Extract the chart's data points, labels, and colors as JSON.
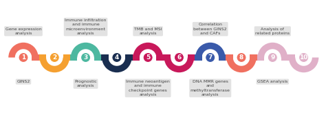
{
  "background_color": "#ffffff",
  "colors": [
    "#F07060",
    "#F5A030",
    "#4DB8A0",
    "#1A2E50",
    "#C8185A",
    "#C8185A",
    "#3A5AAA",
    "#F07060",
    "#E0B0C8",
    "#E0B0C8"
  ],
  "top_labels": [
    {
      "idx": 0,
      "text": "Gene expression\nanalysis"
    },
    {
      "idx": 2,
      "text": "Immune infiltration\nand immune\nmicroenvironment\nanalysis"
    },
    {
      "idx": 4,
      "text": "TMB and MSI\nanalysis"
    },
    {
      "idx": 6,
      "text": "Correlation\nbetween GINS2\nand CAFs"
    },
    {
      "idx": 8,
      "text": "Analysis of\nrelated proteins"
    }
  ],
  "bottom_labels": [
    {
      "idx": 0,
      "text": "GINS2"
    },
    {
      "idx": 2,
      "text": "Prognostic\nanalysis"
    },
    {
      "idx": 4,
      "text": "Immune neoantigen\nand immune\ncheckpoint genes\nanalysis"
    },
    {
      "idx": 6,
      "text": "DNA MMR genes\nand\nmethyltransferase\nanalysis"
    },
    {
      "idx": 8,
      "text": "GSEA analysis"
    }
  ],
  "label_fontsize": 4.5,
  "number_fontsize": 6.5,
  "label_box_color": "#E0E0E0",
  "label_text_color": "#444444"
}
